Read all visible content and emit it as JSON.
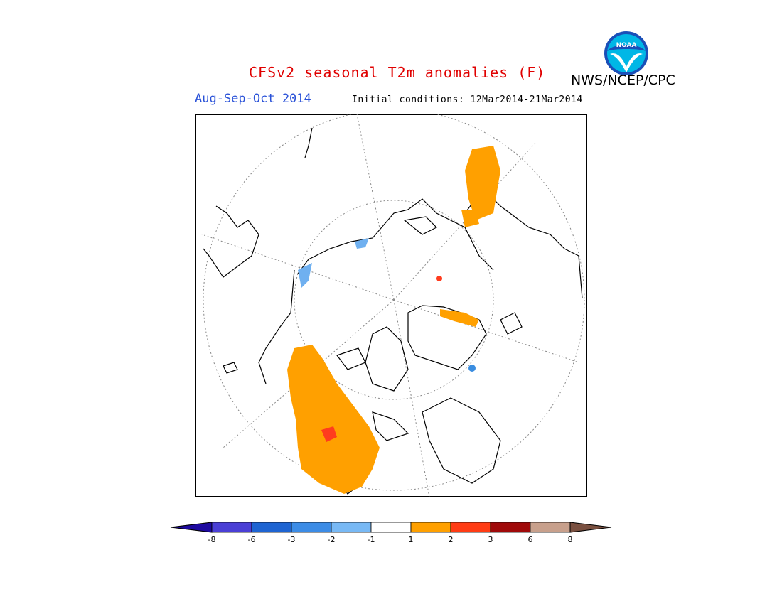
{
  "header": {
    "title": "CFSv2 seasonal T2m anomalies (F)",
    "org": "NWS/NCEP/CPC",
    "season": "Aug-Sep-Oct 2014",
    "initial_conditions": "Initial conditions: 12Mar2014-21Mar2014"
  },
  "logo": {
    "text": "NOAA",
    "colors": {
      "ring": "#1a4fb8",
      "inner": "#00b7e6",
      "bird": "#ffffff"
    }
  },
  "map": {
    "projection": "north-polar-stereographic",
    "anomaly_colors": {
      "orange": "#ffa000",
      "red": "#ff3c1e",
      "light_blue": "#6fb0f0",
      "blue": "#3a8de0"
    }
  },
  "colorbar": {
    "ticks": [
      "-8",
      "-6",
      "-3",
      "-2",
      "-1",
      "1",
      "2",
      "3",
      "6",
      "8"
    ],
    "colors": [
      "#1e0aa0",
      "#4a3fd6",
      "#1e64d2",
      "#3c8ce6",
      "#78b9f5",
      "#ffffff",
      "#ffa000",
      "#ff3c14",
      "#a00a0a",
      "#c8a08c",
      "#7a5040"
    ]
  }
}
